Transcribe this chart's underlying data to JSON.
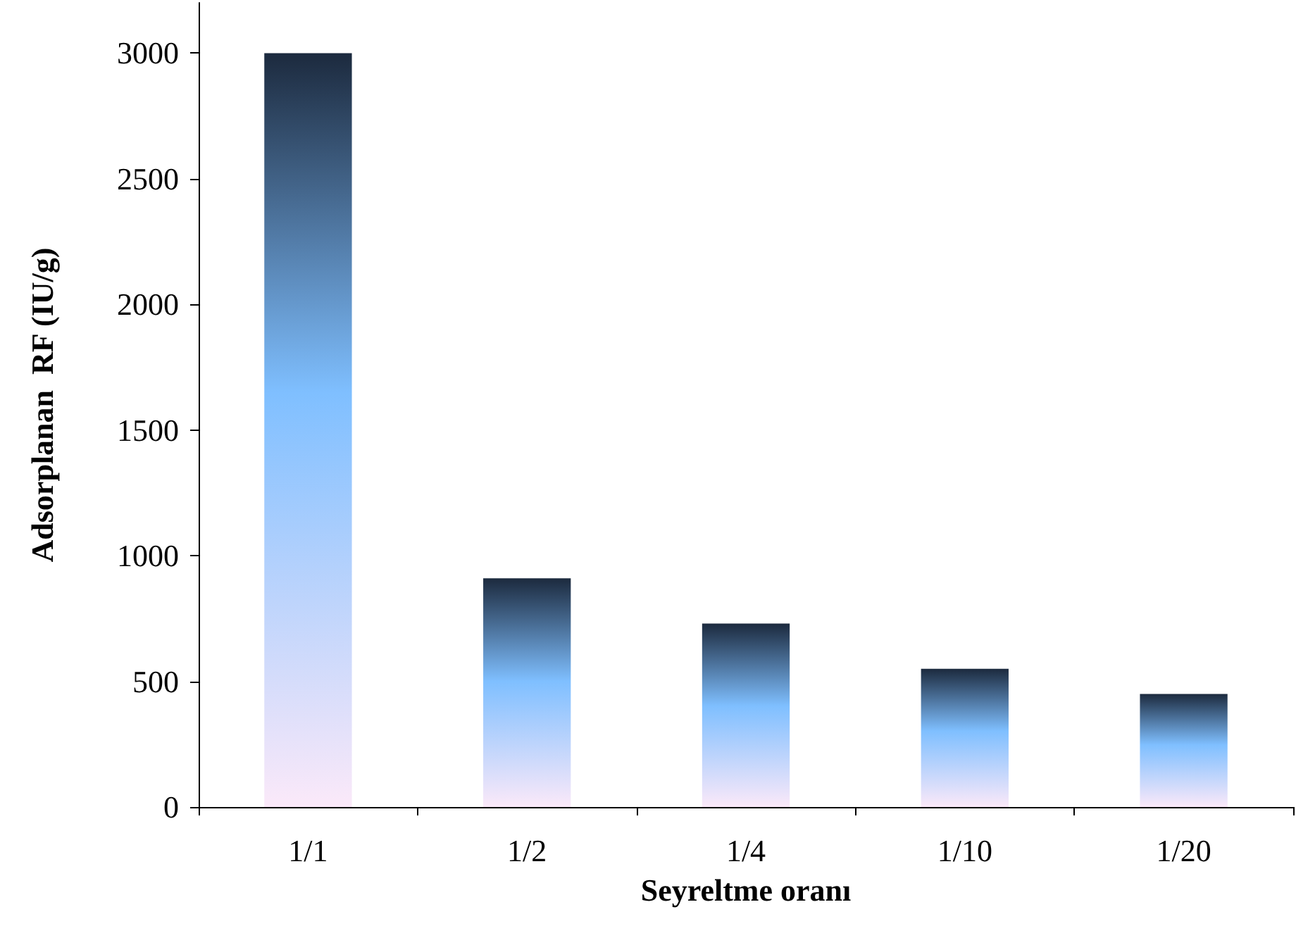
{
  "chart_data": {
    "type": "bar",
    "xlabel": "Seyreltme oranı",
    "ylabel": "Adsorplanan  RF (IU/g)",
    "categories": [
      "1/1",
      "1/2",
      "1/4",
      "1/10",
      "1/20"
    ],
    "values": [
      3000,
      910,
      730,
      550,
      450
    ],
    "color": "#7fbfff",
    "ylim": [
      0,
      3200
    ],
    "yticks": [
      0,
      500,
      1000,
      1500,
      2000,
      2500,
      3000
    ],
    "grid": false
  }
}
